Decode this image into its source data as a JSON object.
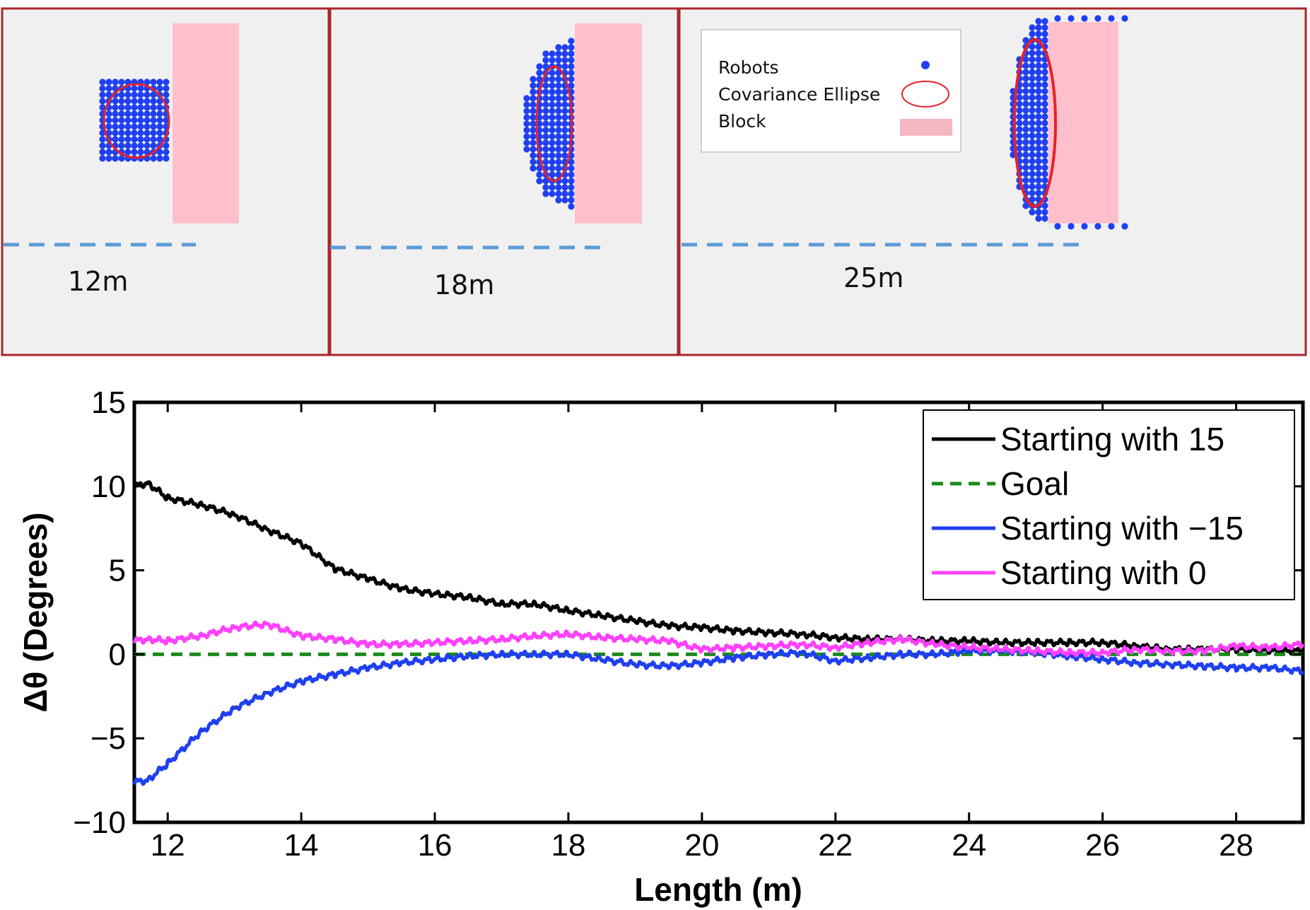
{
  "panels": [
    {
      "label": "12m"
    },
    {
      "label": "18m"
    },
    {
      "label": "25m"
    }
  ],
  "panel_legend": {
    "items": [
      {
        "label": "Robots",
        "marker": "dot",
        "color": "#1f3ff0"
      },
      {
        "label": "Covariance Ellipse",
        "marker": "ellipse",
        "color": "#e8202a"
      },
      {
        "label": "Block",
        "marker": "rect",
        "color": "#f4b8c4"
      }
    ]
  },
  "colors": {
    "robot": "#1f3ff0",
    "ellipse": "#e8202a",
    "block": "#ffc0cb",
    "panel_bg": "#f0f0f0",
    "panel_border": "#a8262b",
    "distance_line": "#5b9bd5"
  },
  "chart_data": {
    "type": "line",
    "title": "",
    "xlabel": "Length (m)",
    "ylabel": "Δθ (Degrees)",
    "xlim": [
      11.5,
      29
    ],
    "ylim": [
      -10,
      15
    ],
    "xticks": [
      12,
      14,
      16,
      18,
      20,
      22,
      24,
      26,
      28
    ],
    "yticks": [
      -10,
      -5,
      0,
      5,
      10,
      15
    ],
    "ytick_labels": [
      "−10",
      "−5",
      "0",
      "5",
      "10",
      "15"
    ],
    "grid": false,
    "legend_position": "top-right",
    "series": [
      {
        "name": "Starting with 15",
        "color": "#000000",
        "style": "solid",
        "x": [
          11.5,
          11.7,
          12.0,
          12.5,
          13.0,
          13.5,
          14.0,
          14.5,
          15.0,
          15.5,
          16.0,
          16.5,
          17.0,
          17.5,
          18.0,
          18.5,
          19.0,
          19.5,
          20.0,
          20.5,
          21.0,
          21.5,
          22.0,
          22.5,
          23.0,
          23.5,
          24.0,
          24.5,
          25.0,
          25.5,
          26.0,
          26.5,
          27.0,
          27.5,
          28.0,
          28.5,
          29.0
        ],
        "y": [
          10.0,
          10.2,
          9.3,
          8.9,
          8.3,
          7.4,
          6.6,
          5.1,
          4.5,
          3.9,
          3.6,
          3.4,
          3.0,
          3.0,
          2.6,
          2.3,
          2.0,
          1.7,
          1.6,
          1.4,
          1.3,
          1.2,
          1.0,
          0.9,
          0.9,
          0.8,
          0.8,
          0.7,
          0.7,
          0.7,
          0.7,
          0.5,
          0.3,
          0.3,
          0.3,
          0.2,
          0.2
        ]
      },
      {
        "name": "Goal",
        "color": "#1a8a1a",
        "style": "dashed",
        "x": [
          11.5,
          29.0
        ],
        "y": [
          0,
          0
        ]
      },
      {
        "name": "Starting with −15",
        "color": "#1f3ff0",
        "style": "solid",
        "x": [
          11.5,
          11.7,
          12.0,
          12.5,
          13.0,
          13.5,
          14.0,
          14.5,
          15.0,
          15.5,
          16.0,
          16.5,
          17.0,
          17.5,
          18.0,
          18.5,
          19.0,
          19.5,
          20.0,
          20.5,
          21.0,
          21.5,
          22.0,
          22.5,
          23.0,
          23.5,
          24.0,
          24.5,
          25.0,
          25.5,
          26.0,
          26.5,
          27.0,
          27.5,
          28.0,
          28.5,
          29.0
        ],
        "y": [
          -7.6,
          -7.5,
          -6.5,
          -4.6,
          -3.2,
          -2.3,
          -1.6,
          -1.2,
          -0.8,
          -0.5,
          -0.3,
          -0.1,
          0.0,
          0.0,
          0.0,
          -0.3,
          -0.6,
          -0.7,
          -0.5,
          -0.2,
          0.0,
          0.1,
          -0.4,
          -0.2,
          0.0,
          0.0,
          0.2,
          0.2,
          0.1,
          -0.1,
          -0.3,
          -0.5,
          -0.6,
          -0.7,
          -0.8,
          -0.8,
          -1.0
        ]
      },
      {
        "name": "Starting with 0",
        "color": "#ff40ff",
        "style": "solid",
        "x": [
          11.5,
          11.7,
          12.0,
          12.5,
          13.0,
          13.5,
          14.0,
          14.5,
          15.0,
          15.5,
          16.0,
          16.5,
          17.0,
          17.5,
          18.0,
          18.5,
          19.0,
          19.5,
          20.0,
          20.5,
          21.0,
          21.5,
          22.0,
          22.5,
          23.0,
          23.5,
          24.0,
          24.5,
          25.0,
          25.5,
          26.0,
          26.5,
          27.0,
          27.5,
          28.0,
          28.5,
          29.0
        ],
        "y": [
          0.8,
          0.9,
          0.8,
          1.1,
          1.6,
          1.8,
          1.1,
          0.9,
          0.6,
          0.6,
          0.7,
          0.8,
          0.9,
          1.1,
          1.2,
          1.0,
          0.9,
          0.8,
          0.3,
          0.4,
          0.5,
          0.6,
          0.4,
          0.7,
          0.9,
          0.6,
          0.4,
          0.3,
          0.2,
          0.1,
          0.1,
          0.3,
          0.2,
          0.2,
          0.5,
          0.4,
          0.6
        ]
      }
    ]
  }
}
